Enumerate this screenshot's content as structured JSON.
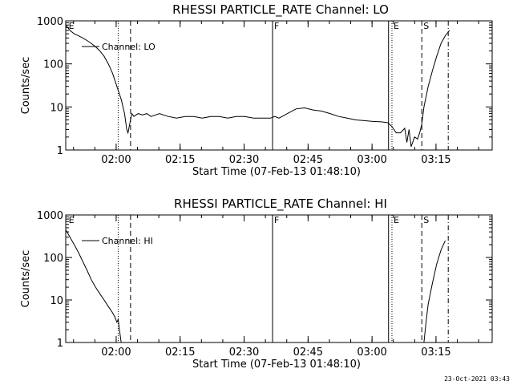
{
  "footer": {
    "timestamp": "23-Oct-2021 03:43"
  },
  "chart_data": [
    {
      "type": "line",
      "title": "RHESSI PARTICLE_RATE Channel: LO",
      "xlabel": "Start Time (07-Feb-13 01:48:10)",
      "ylabel": "Counts/sec",
      "y_scale": "log",
      "ylim": [
        1,
        1000
      ],
      "y_ticks": [
        1,
        10,
        100,
        1000
      ],
      "y_tick_labels": [
        "1",
        "10",
        "100",
        "1000"
      ],
      "x_unit": "minutes since 01:48:10",
      "xlim": [
        0,
        100
      ],
      "x_ticks": [
        11.83,
        26.83,
        41.83,
        56.83,
        71.83,
        86.83
      ],
      "x_tick_labels": [
        "02:00",
        "02:15",
        "02:30",
        "02:45",
        "03:00",
        "03:15"
      ],
      "legend": {
        "label": "Channel: LO",
        "position": "top-left"
      },
      "grid": false,
      "markers": [
        {
          "label": "E",
          "x": 0.3,
          "style": "none"
        },
        {
          "label": "",
          "x": 12.3,
          "style": "dotted"
        },
        {
          "label": "",
          "x": 15.2,
          "style": "dashed"
        },
        {
          "label": "F",
          "x": 48.5,
          "style": "solid"
        },
        {
          "label": "",
          "x": 75.7,
          "style": "solid"
        },
        {
          "label": "E",
          "x": 76.5,
          "style": "dotted"
        },
        {
          "label": "S",
          "x": 83.5,
          "style": "dashed"
        },
        {
          "label": "",
          "x": 89.7,
          "style": "dashdot"
        }
      ],
      "series": [
        {
          "x": [
            0,
            1,
            2,
            3,
            4,
            5,
            6,
            7,
            8,
            9,
            10,
            11,
            12,
            13,
            13.8,
            14.3,
            14.6,
            15,
            15.5,
            16,
            17,
            18,
            19,
            20,
            22,
            24,
            26,
            28,
            30,
            32,
            34,
            36,
            38,
            40,
            42,
            44,
            46,
            48,
            49,
            50,
            52,
            54,
            56,
            58,
            60,
            62,
            64,
            66,
            68,
            70,
            72,
            74,
            75.5,
            76.5,
            77.5,
            78.5,
            79.5,
            80,
            80.5,
            81,
            81.8,
            82.5,
            83,
            83.5,
            84,
            85,
            86,
            87,
            88,
            89,
            90
          ],
          "y": [
            800,
            600,
            500,
            450,
            400,
            350,
            300,
            250,
            200,
            150,
            100,
            60,
            30,
            15,
            7,
            3,
            2.5,
            4,
            7,
            6,
            7,
            6.5,
            7,
            6,
            7,
            6,
            5.5,
            6,
            6,
            5.5,
            6,
            6,
            5.5,
            6,
            6,
            5.5,
            5.5,
            5.5,
            6,
            5.5,
            7,
            9,
            9.5,
            8.5,
            8,
            7,
            6,
            5.5,
            5,
            4.8,
            4.6,
            4.5,
            4.3,
            3.5,
            2.5,
            2.5,
            3.2,
            1.5,
            3,
            1.2,
            2,
            1.8,
            2.5,
            4,
            10,
            30,
            70,
            150,
            300,
            450,
            600
          ]
        }
      ]
    },
    {
      "type": "line",
      "title": "RHESSI PARTICLE_RATE Channel: HI",
      "xlabel": "Start Time (07-Feb-13 01:48:10)",
      "ylabel": "Counts/sec",
      "y_scale": "log",
      "ylim": [
        1,
        1000
      ],
      "y_ticks": [
        1,
        10,
        100,
        1000
      ],
      "y_tick_labels": [
        "1",
        "10",
        "100",
        "1000"
      ],
      "x_unit": "minutes since 01:48:10",
      "xlim": [
        0,
        100
      ],
      "x_ticks": [
        11.83,
        26.83,
        41.83,
        56.83,
        71.83,
        86.83
      ],
      "x_tick_labels": [
        "02:00",
        "02:15",
        "02:30",
        "02:45",
        "03:00",
        "03:15"
      ],
      "legend": {
        "label": "Channel: HI",
        "position": "top-left"
      },
      "grid": false,
      "markers": [
        {
          "label": "E",
          "x": 0.3,
          "style": "none"
        },
        {
          "label": "",
          "x": 12.3,
          "style": "dotted"
        },
        {
          "label": "",
          "x": 15.2,
          "style": "dashed"
        },
        {
          "label": "F",
          "x": 48.5,
          "style": "solid"
        },
        {
          "label": "",
          "x": 75.7,
          "style": "solid"
        },
        {
          "label": "E",
          "x": 76.5,
          "style": "dotted"
        },
        {
          "label": "S",
          "x": 83.5,
          "style": "dashed"
        },
        {
          "label": "",
          "x": 89.7,
          "style": "dashdot"
        }
      ],
      "series": [
        {
          "x": [
            0,
            1,
            2,
            3,
            4,
            5,
            6,
            7,
            8,
            9,
            10,
            11,
            11.5,
            12,
            12.3,
            12.6,
            13
          ],
          "y": [
            450,
            300,
            200,
            130,
            80,
            50,
            30,
            20,
            14,
            10,
            7,
            5,
            4,
            3,
            3.5,
            2,
            1
          ]
        },
        {
          "x": [
            84,
            84.5,
            85,
            86,
            87,
            88,
            89
          ],
          "y": [
            1,
            3,
            8,
            25,
            70,
            150,
            250
          ]
        }
      ]
    }
  ]
}
